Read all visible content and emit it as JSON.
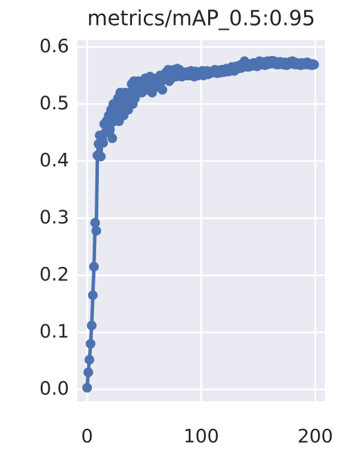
{
  "chart_data": {
    "type": "line",
    "title": "metrics/mAP_0.5:0.95",
    "color": "#4c72b0",
    "grid": true,
    "x": [
      0,
      1,
      2,
      3,
      4,
      5,
      6,
      7,
      8,
      9,
      10,
      11,
      12,
      13,
      14,
      15,
      16,
      17,
      18,
      19,
      20,
      21,
      22,
      23,
      24,
      25,
      26,
      27,
      28,
      29,
      30,
      31,
      32,
      33,
      34,
      35,
      36,
      37,
      38,
      39,
      40,
      41,
      42,
      43,
      44,
      45,
      46,
      47,
      48,
      49,
      50,
      51,
      52,
      53,
      54,
      55,
      56,
      57,
      58,
      59,
      60,
      61,
      62,
      63,
      64,
      65,
      66,
      67,
      68,
      69,
      70,
      71,
      72,
      73,
      74,
      75,
      76,
      77,
      78,
      79,
      80,
      81,
      82,
      83,
      84,
      85,
      86,
      87,
      88,
      89,
      90,
      91,
      92,
      93,
      94,
      95,
      96,
      97,
      98,
      99,
      100,
      101,
      102,
      103,
      104,
      105,
      106,
      107,
      108,
      109,
      110,
      111,
      112,
      113,
      114,
      115,
      116,
      117,
      118,
      119,
      120,
      121,
      122,
      123,
      124,
      125,
      126,
      127,
      128,
      129,
      130,
      131,
      132,
      133,
      134,
      135,
      136,
      137,
      138,
      139,
      140,
      141,
      142,
      143,
      144,
      145,
      146,
      147,
      148,
      149,
      150,
      151,
      152,
      153,
      154,
      155,
      156,
      157,
      158,
      159,
      160,
      161,
      162,
      163,
      164,
      165,
      166,
      167,
      168,
      169,
      170,
      171,
      172,
      173,
      174,
      175,
      176,
      177,
      178,
      179,
      180,
      181,
      182,
      183,
      184,
      185,
      186,
      187,
      188,
      189,
      190,
      191,
      192,
      193,
      194,
      195,
      196,
      197,
      198,
      199
    ],
    "values": [
      0.003,
      0.03,
      0.052,
      0.08,
      0.112,
      0.165,
      0.215,
      0.292,
      0.278,
      0.41,
      0.43,
      0.445,
      0.408,
      0.44,
      0.432,
      0.465,
      0.45,
      0.47,
      0.46,
      0.48,
      0.455,
      0.49,
      0.44,
      0.5,
      0.47,
      0.495,
      0.48,
      0.51,
      0.47,
      0.52,
      0.49,
      0.51,
      0.48,
      0.52,
      0.5,
      0.515,
      0.49,
      0.52,
      0.505,
      0.535,
      0.5,
      0.54,
      0.51,
      0.53,
      0.52,
      0.54,
      0.525,
      0.535,
      0.52,
      0.54,
      0.53,
      0.545,
      0.525,
      0.54,
      0.53,
      0.548,
      0.535,
      0.52,
      0.545,
      0.538,
      0.54,
      0.53,
      0.545,
      0.535,
      0.55,
      0.54,
      0.525,
      0.55,
      0.545,
      0.555,
      0.548,
      0.56,
      0.54,
      0.555,
      0.545,
      0.55,
      0.56,
      0.552,
      0.548,
      0.562,
      0.555,
      0.56,
      0.55,
      0.548,
      0.552,
      0.555,
      0.55,
      0.556,
      0.55,
      0.553,
      0.55,
      0.558,
      0.552,
      0.555,
      0.548,
      0.557,
      0.553,
      0.55,
      0.556,
      0.552,
      0.555,
      0.558,
      0.55,
      0.556,
      0.553,
      0.558,
      0.552,
      0.556,
      0.554,
      0.557,
      0.555,
      0.558,
      0.56,
      0.556,
      0.554,
      0.559,
      0.557,
      0.555,
      0.56,
      0.558,
      0.556,
      0.56,
      0.562,
      0.558,
      0.557,
      0.562,
      0.56,
      0.565,
      0.561,
      0.558,
      0.563,
      0.566,
      0.562,
      0.565,
      0.568,
      0.563,
      0.57,
      0.565,
      0.575,
      0.566,
      0.568,
      0.565,
      0.57,
      0.566,
      0.569,
      0.567,
      0.572,
      0.568,
      0.57,
      0.566,
      0.572,
      0.575,
      0.569,
      0.574,
      0.57,
      0.573,
      0.568,
      0.572,
      0.575,
      0.57,
      0.574,
      0.571,
      0.576,
      0.572,
      0.575,
      0.57,
      0.573,
      0.569,
      0.572,
      0.574,
      0.57,
      0.572,
      0.569,
      0.573,
      0.571,
      0.568,
      0.572,
      0.57,
      0.574,
      0.571,
      0.575,
      0.57,
      0.573,
      0.569,
      0.572,
      0.57,
      0.571,
      0.568,
      0.572,
      0.57,
      0.569,
      0.572,
      0.57,
      0.573,
      0.569,
      0.571,
      0.57,
      0.568,
      0.57,
      0.569
    ],
    "xlim": [
      -8.5,
      208.5
    ],
    "xticks": [
      0,
      100,
      200
    ],
    "ylim": [
      -0.0206,
      0.612
    ],
    "yticks": [
      {
        "value": 0,
        "label": "0.0"
      },
      0.1,
      0.2,
      0.3,
      0.4,
      0.5,
      0.6
    ]
  }
}
